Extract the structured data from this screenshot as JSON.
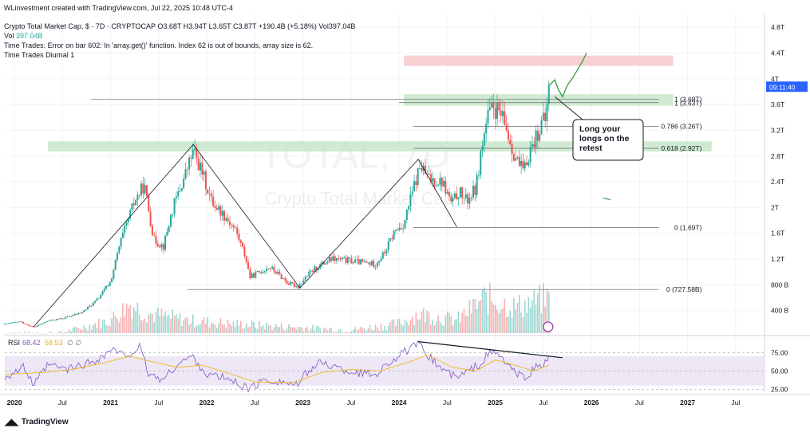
{
  "header": {
    "credit": "WLinvestment created with TradingView.com, Jul 22, 2025 10:48 UTC-4",
    "symbol_line": "Crypto Total Market Cap, $ · 7D · CRYPTOCAP  O3.68T  H3.94T  L3.65T  C3.87T  +190.4B (+5.18%)  Vol397.04B",
    "vol_label": "Vol",
    "vol_value": "397.04B",
    "error_line": "Time Trades: Error on bar 602: In 'array.get()' function. Index 62 is out of bounds, array size is 62.",
    "indicator_line": "Time Trades Diurnal 1"
  },
  "watermark": {
    "ticker": "TOTAL, 7D",
    "name": "Crypto Total Market Cap, $"
  },
  "price_badge": "09:11:40",
  "annotation": "Long your longs on the retest",
  "brand": "TradingView",
  "colors": {
    "up": "#26a69a",
    "down": "#ef5350",
    "green_zone": "#c8e6c9",
    "red_zone": "#f8c9cc",
    "rsi": "#7e57c2",
    "rsi_ma": "#f2b400",
    "rsi_band": "#ede7f6",
    "badge": "#2962ff"
  },
  "chart_data": {
    "type": "candlestick",
    "title": "Crypto Total Market Cap, $ · 7D · CRYPTOCAP",
    "x_range": [
      2019.9,
      2027.8
    ],
    "y_range_T": [
      0.05,
      4.95
    ],
    "x_ticks": [
      {
        "t": 2020.0,
        "label": "2020"
      },
      {
        "t": 2020.5,
        "label": "Jul"
      },
      {
        "t": 2021.0,
        "label": "2021"
      },
      {
        "t": 2021.5,
        "label": "Jul"
      },
      {
        "t": 2022.0,
        "label": "2022"
      },
      {
        "t": 2022.5,
        "label": "Jul"
      },
      {
        "t": 2023.0,
        "label": "2023"
      },
      {
        "t": 2023.5,
        "label": "Jul"
      },
      {
        "t": 2024.0,
        "label": "2024"
      },
      {
        "t": 2024.5,
        "label": "Jul"
      },
      {
        "t": 2025.0,
        "label": "2025"
      },
      {
        "t": 2025.5,
        "label": "Jul"
      },
      {
        "t": 2026.0,
        "label": "2026"
      },
      {
        "t": 2026.5,
        "label": "Jul"
      },
      {
        "t": 2027.0,
        "label": "2027"
      },
      {
        "t": 2027.5,
        "label": "Jul"
      }
    ],
    "y_ticks": [
      {
        "v": 4.8,
        "label": "4.8T"
      },
      {
        "v": 4.4,
        "label": "4.4T"
      },
      {
        "v": 4.0,
        "label": "4T"
      },
      {
        "v": 3.6,
        "label": "3.6T"
      },
      {
        "v": 3.2,
        "label": "3.2T"
      },
      {
        "v": 2.8,
        "label": "2.8T"
      },
      {
        "v": 2.4,
        "label": "2.4T"
      },
      {
        "v": 2.0,
        "label": "2T"
      },
      {
        "v": 1.6,
        "label": "1.6T"
      },
      {
        "v": 1.2,
        "label": "1.2T"
      },
      {
        "v": 0.8,
        "label": "800 B"
      },
      {
        "v": 0.4,
        "label": "400 B"
      }
    ],
    "price_path": [
      [
        2019.9,
        0.19
      ],
      [
        2020.05,
        0.23
      ],
      [
        2020.2,
        0.14
      ],
      [
        2020.35,
        0.24
      ],
      [
        2020.5,
        0.28
      ],
      [
        2020.7,
        0.37
      ],
      [
        2020.85,
        0.55
      ],
      [
        2021.0,
        0.85
      ],
      [
        2021.1,
        1.45
      ],
      [
        2021.25,
        2.1
      ],
      [
        2021.35,
        2.35
      ],
      [
        2021.45,
        1.5
      ],
      [
        2021.55,
        1.4
      ],
      [
        2021.65,
        2.0
      ],
      [
        2021.75,
        2.4
      ],
      [
        2021.86,
        2.88
      ],
      [
        2021.95,
        2.55
      ],
      [
        2022.05,
        2.1
      ],
      [
        2022.2,
        1.85
      ],
      [
        2022.3,
        1.65
      ],
      [
        2022.4,
        1.25
      ],
      [
        2022.45,
        0.92
      ],
      [
        2022.55,
        1.0
      ],
      [
        2022.65,
        1.08
      ],
      [
        2022.75,
        0.96
      ],
      [
        2022.85,
        0.82
      ],
      [
        2022.95,
        0.78
      ],
      [
        2023.05,
        0.95
      ],
      [
        2023.15,
        1.08
      ],
      [
        2023.3,
        1.2
      ],
      [
        2023.45,
        1.18
      ],
      [
        2023.6,
        1.15
      ],
      [
        2023.75,
        1.12
      ],
      [
        2023.85,
        1.3
      ],
      [
        2023.95,
        1.62
      ],
      [
        2024.05,
        1.75
      ],
      [
        2024.15,
        2.3
      ],
      [
        2024.22,
        2.65
      ],
      [
        2024.3,
        2.45
      ],
      [
        2024.45,
        2.4
      ],
      [
        2024.55,
        2.05
      ],
      [
        2024.62,
        2.25
      ],
      [
        2024.7,
        2.1
      ],
      [
        2024.8,
        2.3
      ],
      [
        2024.85,
        2.85
      ],
      [
        2024.92,
        3.4
      ],
      [
        2024.98,
        3.55
      ],
      [
        2025.05,
        3.45
      ],
      [
        2025.12,
        3.2
      ],
      [
        2025.18,
        2.9
      ],
      [
        2025.25,
        2.65
      ],
      [
        2025.3,
        2.55
      ],
      [
        2025.35,
        2.85
      ],
      [
        2025.42,
        3.1
      ],
      [
        2025.48,
        3.3
      ],
      [
        2025.52,
        3.35
      ],
      [
        2025.56,
        3.87
      ]
    ],
    "volume_path": [
      [
        2019.9,
        0.05
      ],
      [
        2020.5,
        0.06
      ],
      [
        2021.0,
        0.25
      ],
      [
        2021.2,
        0.5
      ],
      [
        2021.4,
        0.35
      ],
      [
        2021.8,
        0.25
      ],
      [
        2022.2,
        0.2
      ],
      [
        2022.8,
        0.15
      ],
      [
        2023.5,
        0.1
      ],
      [
        2024.0,
        0.2
      ],
      [
        2024.2,
        0.35
      ],
      [
        2024.6,
        0.25
      ],
      [
        2024.9,
        0.6
      ],
      [
        2025.2,
        0.45
      ],
      [
        2025.56,
        0.6
      ]
    ],
    "levels": [
      {
        "label": "1 (3.68T)",
        "value": 3.68,
        "from": 2020.8,
        "to": 2026.7
      },
      {
        "label": "1 (3.63T)",
        "value": 3.63,
        "from": 2024.0,
        "to": 2026.7
      },
      {
        "label": "0.786 (3.26T)",
        "value": 3.26,
        "from": 2024.15,
        "to": 2026.7
      },
      {
        "label": "0.618 (2.92T)",
        "value": 2.92,
        "from": 2024.15,
        "to": 2026.7
      },
      {
        "label": "0 (1.69T)",
        "value": 1.69,
        "from": 2024.15,
        "to": 2026.7
      },
      {
        "label": "0 (727.58B)",
        "value": 0.72758,
        "from": 2021.8,
        "to": 2026.7
      }
    ],
    "zones": [
      {
        "kind": "resistance",
        "x1": 2024.05,
        "x2": 2026.85,
        "y1": 4.2,
        "y2": 4.36
      },
      {
        "kind": "support",
        "x1": 2024.05,
        "x2": 2026.85,
        "y1": 3.58,
        "y2": 3.76
      },
      {
        "kind": "support",
        "x1": 2020.35,
        "x2": 2027.25,
        "y1": 2.87,
        "y2": 3.03
      }
    ],
    "trendlines": [
      [
        [
          2020.2,
          0.15
        ],
        [
          2021.86,
          2.98
        ],
        [
          2022.97,
          0.75
        ],
        [
          2024.2,
          2.75
        ],
        [
          2024.6,
          1.7
        ]
      ]
    ],
    "projection": [
      [
        2025.56,
        3.9
      ],
      [
        2025.62,
        3.98
      ],
      [
        2025.66,
        3.82
      ],
      [
        2025.7,
        3.72
      ],
      [
        2025.75,
        3.9
      ],
      [
        2025.8,
        4.0
      ],
      [
        2025.9,
        4.25
      ],
      [
        2025.95,
        4.4
      ]
    ],
    "rsi": {
      "value": "68.42",
      "ma": "58.53",
      "label": "RSI",
      "levels": [
        {
          "v": 75,
          "label": "75.00"
        },
        {
          "v": 50,
          "label": "50.00"
        },
        {
          "v": 25,
          "label": "25.00"
        }
      ],
      "band": [
        30,
        70
      ],
      "path": [
        [
          2019.9,
          42
        ],
        [
          2020.1,
          55
        ],
        [
          2020.2,
          30
        ],
        [
          2020.35,
          58
        ],
        [
          2020.55,
          52
        ],
        [
          2020.8,
          62
        ],
        [
          2020.95,
          72
        ],
        [
          2021.0,
          80
        ],
        [
          2021.15,
          70
        ],
        [
          2021.3,
          82
        ],
        [
          2021.4,
          45
        ],
        [
          2021.55,
          38
        ],
        [
          2021.7,
          60
        ],
        [
          2021.85,
          70
        ],
        [
          2022.0,
          45
        ],
        [
          2022.2,
          40
        ],
        [
          2022.45,
          25
        ],
        [
          2022.6,
          38
        ],
        [
          2022.8,
          35
        ],
        [
          2022.95,
          30
        ],
        [
          2023.05,
          50
        ],
        [
          2023.2,
          62
        ],
        [
          2023.4,
          52
        ],
        [
          2023.55,
          48
        ],
        [
          2023.75,
          45
        ],
        [
          2023.9,
          62
        ],
        [
          2024.05,
          75
        ],
        [
          2024.2,
          86
        ],
        [
          2024.4,
          58
        ],
        [
          2024.6,
          40
        ],
        [
          2024.85,
          60
        ],
        [
          2024.95,
          76
        ],
        [
          2025.05,
          70
        ],
        [
          2025.2,
          48
        ],
        [
          2025.3,
          40
        ],
        [
          2025.42,
          55
        ],
        [
          2025.5,
          58
        ],
        [
          2025.56,
          68
        ]
      ],
      "ma_path": [
        [
          2019.9,
          45
        ],
        [
          2020.3,
          48
        ],
        [
          2020.6,
          52
        ],
        [
          2020.9,
          60
        ],
        [
          2021.2,
          70
        ],
        [
          2021.45,
          62
        ],
        [
          2021.7,
          55
        ],
        [
          2021.95,
          58
        ],
        [
          2022.2,
          48
        ],
        [
          2022.5,
          35
        ],
        [
          2022.9,
          34
        ],
        [
          2023.2,
          48
        ],
        [
          2023.5,
          52
        ],
        [
          2023.8,
          50
        ],
        [
          2024.1,
          62
        ],
        [
          2024.3,
          72
        ],
        [
          2024.55,
          55
        ],
        [
          2024.8,
          50
        ],
        [
          2025.0,
          65
        ],
        [
          2025.2,
          58
        ],
        [
          2025.4,
          50
        ],
        [
          2025.56,
          58
        ]
      ],
      "divergence": [
        [
          2024.2,
          90
        ],
        [
          2025.7,
          68
        ]
      ]
    }
  }
}
